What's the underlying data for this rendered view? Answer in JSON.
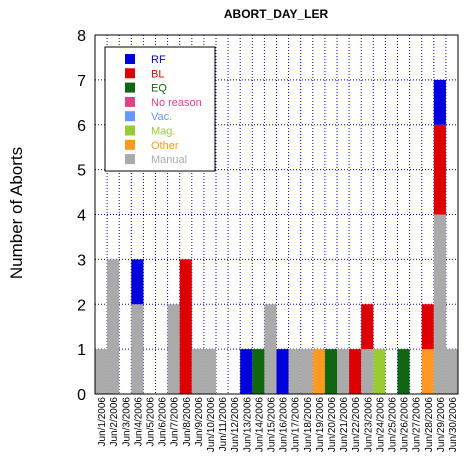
{
  "chart_data": {
    "type": "bar",
    "stacked": true,
    "title": "ABORT_DAY_LER",
    "xlabel": "",
    "ylabel": "Number of Aborts",
    "ylim": [
      0,
      8
    ],
    "yticks": [
      "0",
      "1",
      "2",
      "3",
      "4",
      "5",
      "6",
      "7",
      "8"
    ],
    "grid": true,
    "legend_position": "top-left",
    "categories": [
      "Jun/1/2006",
      "Jun/2/2006",
      "Jun/3/2006",
      "Jun/4/2006",
      "Jun/5/2006",
      "Jun/6/2006",
      "Jun/7/2006",
      "Jun/8/2006",
      "Jun/9/2006",
      "Jun/10/2006",
      "Jun/11/2006",
      "Jun/12/2006",
      "Jun/13/2006",
      "Jun/14/2006",
      "Jun/15/2006",
      "Jun/16/2006",
      "Jun/17/2006",
      "Jun/18/2006",
      "Jun/19/2006",
      "Jun/20/2006",
      "Jun/21/2006",
      "Jun/22/2006",
      "Jun/23/2006",
      "Jun/24/2006",
      "Jun/25/2006",
      "Jun/26/2006",
      "Jun/27/2006",
      "Jun/28/2006",
      "Jun/29/2006",
      "Jun/30/2006"
    ],
    "series": [
      {
        "name": "RF",
        "color": "#0000dd",
        "values": [
          0,
          0,
          0,
          1,
          0,
          0,
          0,
          0,
          0,
          0,
          0,
          0,
          1,
          0,
          0,
          1,
          0,
          0,
          0,
          0,
          0,
          0,
          0,
          0,
          0,
          0,
          0,
          0,
          1,
          0
        ]
      },
      {
        "name": "BL",
        "color": "#dd0000",
        "values": [
          0,
          0,
          0,
          0,
          0,
          0,
          0,
          3,
          0,
          0,
          0,
          0,
          0,
          0,
          0,
          0,
          0,
          0,
          0,
          0,
          0,
          1,
          1,
          0,
          0,
          0,
          0,
          1,
          2,
          0
        ]
      },
      {
        "name": "EQ",
        "color": "#116611",
        "values": [
          0,
          0,
          0,
          0,
          0,
          0,
          0,
          0,
          0,
          0,
          0,
          0,
          0,
          1,
          0,
          0,
          0,
          0,
          0,
          1,
          0,
          0,
          0,
          0,
          0,
          1,
          0,
          0,
          0,
          0
        ]
      },
      {
        "name": "No reason",
        "color": "#dd4488",
        "values": [
          0,
          0,
          0,
          0,
          0,
          0,
          0,
          0,
          0,
          0,
          0,
          0,
          0,
          0,
          0,
          0,
          0,
          0,
          0,
          0,
          0,
          0,
          0,
          0,
          0,
          0,
          0,
          0,
          0,
          0
        ]
      },
      {
        "name": "Vac.",
        "color": "#6699ff",
        "values": [
          0,
          0,
          0,
          0,
          0,
          0,
          0,
          0,
          0,
          0,
          0,
          0,
          0,
          0,
          0,
          0,
          0,
          0,
          0,
          0,
          0,
          0,
          0,
          0,
          0,
          0,
          0,
          0,
          0,
          0
        ]
      },
      {
        "name": "Mag.",
        "color": "#99cc33",
        "values": [
          0,
          0,
          0,
          0,
          0,
          0,
          0,
          0,
          0,
          0,
          0,
          0,
          0,
          0,
          0,
          0,
          0,
          0,
          0,
          0,
          0,
          0,
          0,
          1,
          0,
          0,
          0,
          0,
          0,
          0
        ]
      },
      {
        "name": "Other",
        "color": "#ff9922",
        "values": [
          0,
          0,
          0,
          0,
          0,
          0,
          0,
          0,
          0,
          0,
          0,
          0,
          0,
          0,
          0,
          0,
          0,
          0,
          1,
          0,
          0,
          0,
          0,
          0,
          0,
          0,
          0,
          1,
          0,
          0
        ]
      },
      {
        "name": "Manual",
        "color": "#aaaaaa",
        "values": [
          1,
          3,
          0,
          2,
          0,
          0,
          2,
          0,
          1,
          1,
          0,
          0,
          0,
          0,
          2,
          0,
          1,
          1,
          0,
          0,
          1,
          0,
          1,
          0,
          0,
          0,
          0,
          0,
          4,
          1
        ]
      }
    ],
    "stack_order": [
      "Manual",
      "Other",
      "Mag.",
      "Vac.",
      "No reason",
      "EQ",
      "BL",
      "RF"
    ]
  }
}
